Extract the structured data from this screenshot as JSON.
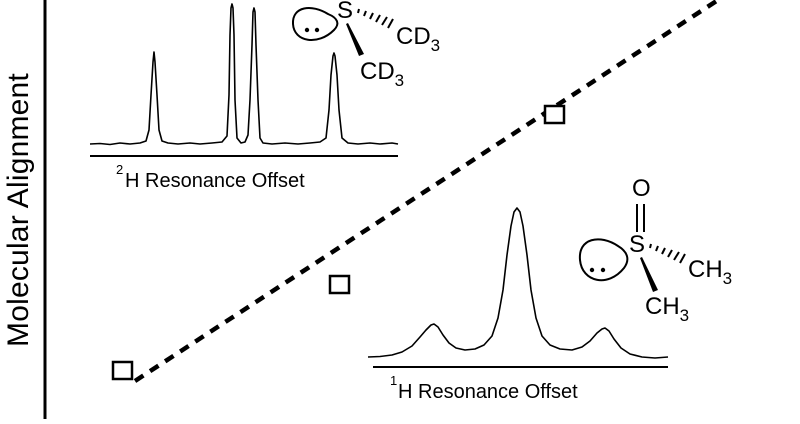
{
  "y_axis_label": "Molecular Alignment",
  "inset_2h": {
    "axis_label_sup": "2",
    "axis_label": "H Resonance Offset",
    "molecule_groups": [
      "CD",
      "CD"
    ],
    "subscript": "3",
    "atom": "S"
  },
  "inset_1h": {
    "axis_label_sup": "1",
    "axis_label": "H Resonance Offset",
    "molecule_groups": [
      "CH",
      "CH"
    ],
    "subscript": "3",
    "atom": "S",
    "oxygen": "O"
  },
  "markers": [
    {
      "name": "marker-low"
    },
    {
      "name": "marker-mid"
    },
    {
      "name": "marker-high"
    }
  ]
}
